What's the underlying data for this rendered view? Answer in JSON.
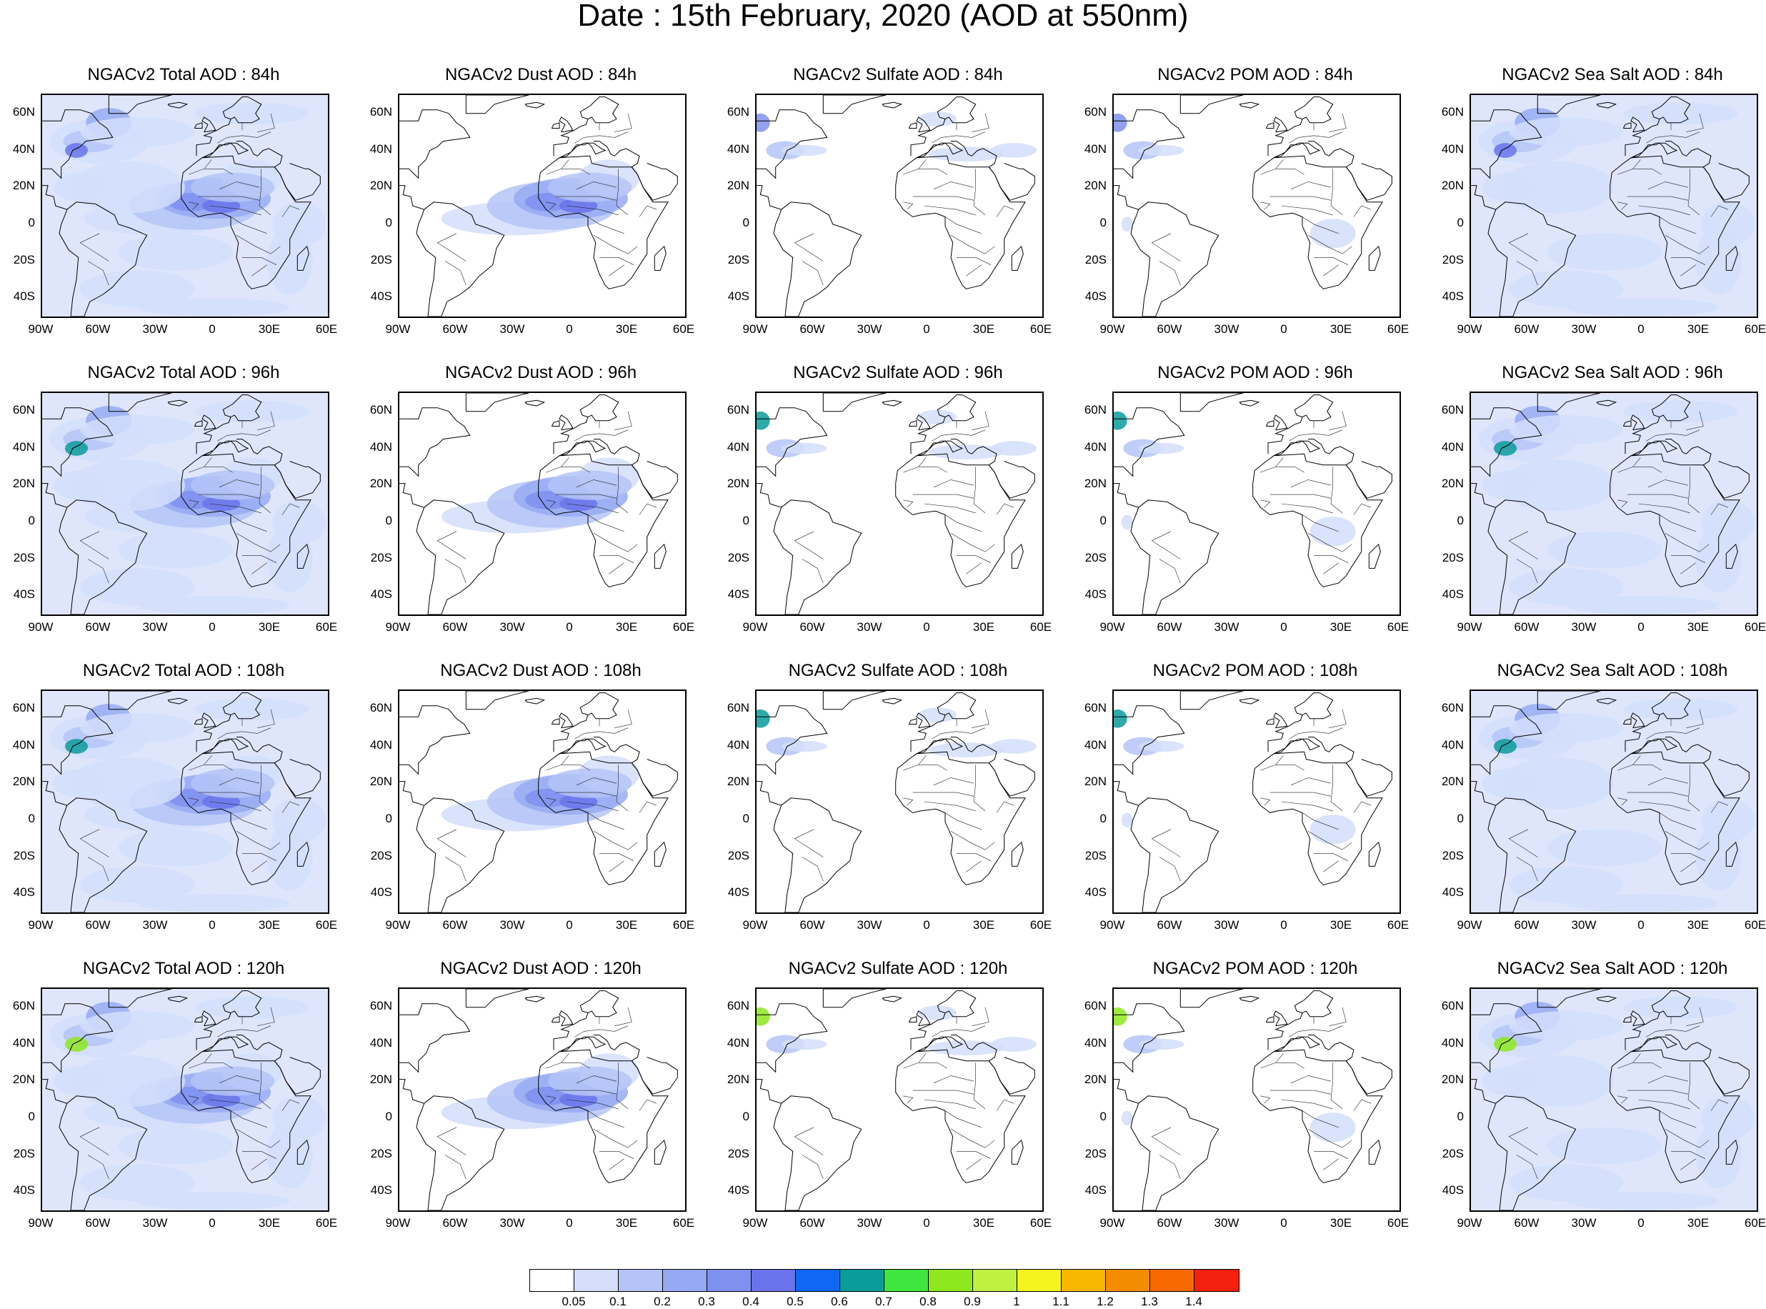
{
  "title": "Date : 15th February, 2020 (AOD at 550nm)",
  "columns": [
    {
      "name": "NGACv2 Total AOD",
      "key": "total"
    },
    {
      "name": "NGACv2 Dust AOD",
      "key": "dust"
    },
    {
      "name": "NGACv2 Sulfate AOD",
      "key": "sulfate"
    },
    {
      "name": "NGACv2 POM AOD",
      "key": "pom"
    },
    {
      "name": "NGACv2 Sea Salt AOD",
      "key": "seasalt"
    }
  ],
  "panel_titles": [
    [
      "NGACv2 Total AOD : 84h",
      "NGACv2 Dust AOD : 84h",
      "NGACv2 Sulfate AOD : 84h",
      "NGACv2 POM AOD : 84h",
      "NGACv2 Sea Salt AOD : 84h"
    ],
    [
      "NGACv2 Total AOD : 96h",
      "NGACv2 Dust AOD : 96h",
      "NGACv2 Sulfate AOD : 96h",
      "NGACv2 POM AOD : 96h",
      "NGACv2 Sea Salt AOD : 96h"
    ],
    [
      "NGACv2 Total AOD : 108h",
      "NGACv2 Dust AOD : 108h",
      "NGACv2 Sulfate AOD : 108h",
      "NGACv2 POM AOD : 108h",
      "NGACv2 Sea Salt AOD : 108h"
    ],
    [
      "NGACv2 Total AOD : 120h",
      "NGACv2 Dust AOD : 120h",
      "NGACv2 Sulfate AOD : 120h",
      "NGACv2 POM AOD : 120h",
      "NGACv2 Sea Salt  AOD : 120h"
    ]
  ],
  "forecast_hours": [
    "84h",
    "96h",
    "108h",
    "120h"
  ],
  "map_extent": {
    "lon": [
      -90,
      60
    ],
    "lat": [
      -50,
      70
    ]
  },
  "lat_ticks": [
    "60N",
    "40N",
    "20N",
    "0",
    "20S",
    "40S"
  ],
  "lat_tick_values": [
    60,
    40,
    20,
    0,
    -20,
    -40
  ],
  "lon_ticks": [
    "90W",
    "60W",
    "30W",
    "0",
    "30E",
    "60E"
  ],
  "lon_tick_values": [
    -90,
    -60,
    -30,
    0,
    30,
    60
  ],
  "colorbar": {
    "labels": [
      "0.05",
      "0.1",
      "0.2",
      "0.3",
      "0.4",
      "0.5",
      "0.6",
      "0.7",
      "0.8",
      "0.9",
      "1",
      "1.1",
      "1.2",
      "1.3",
      "1.4"
    ],
    "colors": [
      "#ffffff",
      "#d4defb",
      "#b4c4f7",
      "#96aaf3",
      "#7f91ee",
      "#6a73ea",
      "#0f67f2",
      "#0a9b9b",
      "#3ee63e",
      "#8de81e",
      "#c0f040",
      "#f4f41c",
      "#f8b800",
      "#f48c00",
      "#f66a00",
      "#f52010"
    ]
  },
  "fields": {
    "total": {
      "coverage": "high",
      "features": [
        "dust-plume",
        "nw-atlantic",
        "south-atlantic",
        "broad-ocean"
      ]
    },
    "dust": {
      "coverage": "medium",
      "features": [
        "dust-plume"
      ]
    },
    "sulfate": {
      "coverage": "low",
      "features": [
        "mediterranean",
        "us-east-coast"
      ]
    },
    "pom": {
      "coverage": "low",
      "features": [
        "us-east-coast",
        "central-africa"
      ]
    },
    "seasalt": {
      "coverage": "high",
      "features": [
        "nw-atlantic",
        "south-atlantic",
        "broad-ocean"
      ]
    }
  }
}
